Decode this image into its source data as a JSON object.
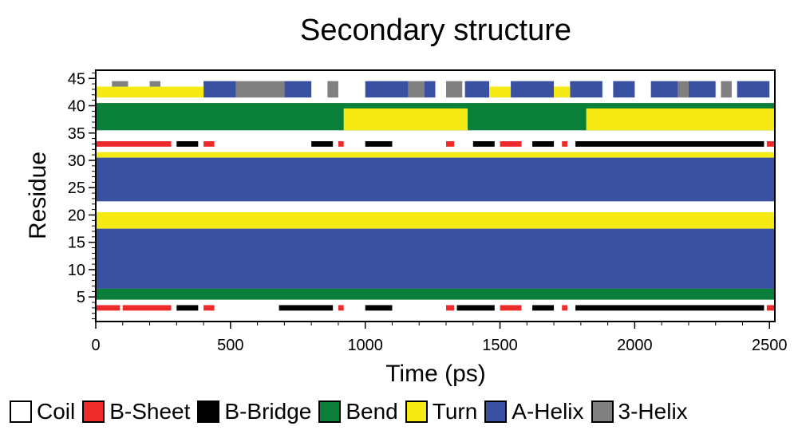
{
  "chart_data": {
    "type": "heatmap",
    "title": "Secondary structure",
    "xlabel": "Time (ps)",
    "ylabel": "Residue",
    "xlim": [
      0,
      2520
    ],
    "ylim": [
      0.5,
      46.5
    ],
    "xticks": [
      0,
      500,
      1000,
      1500,
      2000,
      2500
    ],
    "yticks": [
      5,
      10,
      15,
      20,
      25,
      30,
      35,
      40,
      45
    ],
    "categories": [
      "Coil",
      "B-Sheet",
      "B-Bridge",
      "Bend",
      "Turn",
      "A-Helix",
      "3-Helix"
    ],
    "colors": {
      "Coil": "#ffffff",
      "B-Sheet": "#ee2a2a",
      "B-Bridge": "#000000",
      "Bend": "#0a7f3a",
      "Turn": "#f5ea14",
      "A-Helix": "#3a51a2",
      "3-Helix": "#808080"
    },
    "legend": "bottom",
    "series": [
      {
        "residues": [
          7,
          17
        ],
        "state": "A-Helix",
        "time_ranges": [
          [
            0,
            2520
          ]
        ]
      },
      {
        "residues": [
          23,
          30
        ],
        "state": "A-Helix",
        "time_ranges": [
          [
            0,
            2520
          ]
        ]
      },
      {
        "residues": [
          18,
          20
        ],
        "state": "Turn",
        "time_ranges": [
          [
            0,
            2520
          ]
        ]
      },
      {
        "residues": [
          31,
          31
        ],
        "state": "Turn",
        "time_ranges": [
          [
            0,
            2520
          ]
        ]
      },
      {
        "residues": [
          5,
          6
        ],
        "state": "Bend",
        "time_ranges": [
          [
            0,
            2520
          ]
        ]
      },
      {
        "residues": [
          36,
          40
        ],
        "state": "Bend",
        "time_ranges": [
          [
            0,
            2520
          ]
        ]
      },
      {
        "residues": [
          36,
          39
        ],
        "state": "Turn",
        "time_ranges": [
          [
            920,
            1380
          ],
          [
            1820,
            2520
          ]
        ]
      },
      {
        "residues": [
          33,
          33
        ],
        "state": "B-Sheet",
        "time_ranges": [
          [
            0,
            280
          ],
          [
            400,
            440
          ],
          [
            900,
            920
          ],
          [
            1300,
            1330
          ],
          [
            1500,
            1580
          ],
          [
            1730,
            1750
          ],
          [
            2490,
            2520
          ]
        ]
      },
      {
        "residues": [
          33,
          33
        ],
        "state": "B-Bridge",
        "time_ranges": [
          [
            300,
            380
          ],
          [
            800,
            880
          ],
          [
            1000,
            1100
          ],
          [
            1400,
            1480
          ],
          [
            1620,
            1700
          ],
          [
            1780,
            2480
          ]
        ]
      },
      {
        "residues": [
          3,
          3
        ],
        "state": "B-Sheet",
        "time_ranges": [
          [
            0,
            90
          ],
          [
            100,
            280
          ],
          [
            400,
            440
          ],
          [
            900,
            920
          ],
          [
            1300,
            1330
          ],
          [
            1500,
            1580
          ],
          [
            1730,
            1750
          ],
          [
            2490,
            2520
          ]
        ]
      },
      {
        "residues": [
          3,
          3
        ],
        "state": "B-Bridge",
        "time_ranges": [
          [
            300,
            380
          ],
          [
            680,
            880
          ],
          [
            1000,
            1100
          ],
          [
            1340,
            1480
          ],
          [
            1620,
            1700
          ],
          [
            1780,
            2480
          ]
        ]
      },
      {
        "residues": [
          42,
          44
        ],
        "state": "A-Helix",
        "time_ranges": [
          [
            400,
            520
          ],
          [
            700,
            800
          ],
          [
            1000,
            1160
          ],
          [
            1220,
            1260
          ],
          [
            1370,
            1460
          ],
          [
            1540,
            1700
          ],
          [
            1760,
            1880
          ],
          [
            1920,
            2000
          ],
          [
            2060,
            2160
          ],
          [
            2200,
            2300
          ],
          [
            2380,
            2500
          ]
        ]
      },
      {
        "residues": [
          42,
          44
        ],
        "state": "3-Helix",
        "time_ranges": [
          [
            520,
            700
          ],
          [
            860,
            900
          ],
          [
            1160,
            1220
          ],
          [
            1300,
            1360
          ],
          [
            2160,
            2200
          ],
          [
            2320,
            2360
          ]
        ]
      },
      {
        "residues": [
          42,
          43
        ],
        "state": "Turn",
        "time_ranges": [
          [
            0,
            400
          ],
          [
            1460,
            1540
          ],
          [
            1700,
            1760
          ]
        ]
      },
      {
        "residues": [
          44,
          44
        ],
        "state": "3-Helix",
        "time_ranges": [
          [
            60,
            120
          ],
          [
            200,
            240
          ]
        ]
      }
    ]
  },
  "legend_items": [
    {
      "label": "Coil",
      "color": "#ffffff"
    },
    {
      "label": "B-Sheet",
      "color": "#ee2a2a"
    },
    {
      "label": "B-Bridge",
      "color": "#000000"
    },
    {
      "label": "Bend",
      "color": "#0a7f3a"
    },
    {
      "label": "Turn",
      "color": "#f5ea14"
    },
    {
      "label": "A-Helix",
      "color": "#3a51a2"
    },
    {
      "label": "3-Helix",
      "color": "#808080"
    }
  ]
}
